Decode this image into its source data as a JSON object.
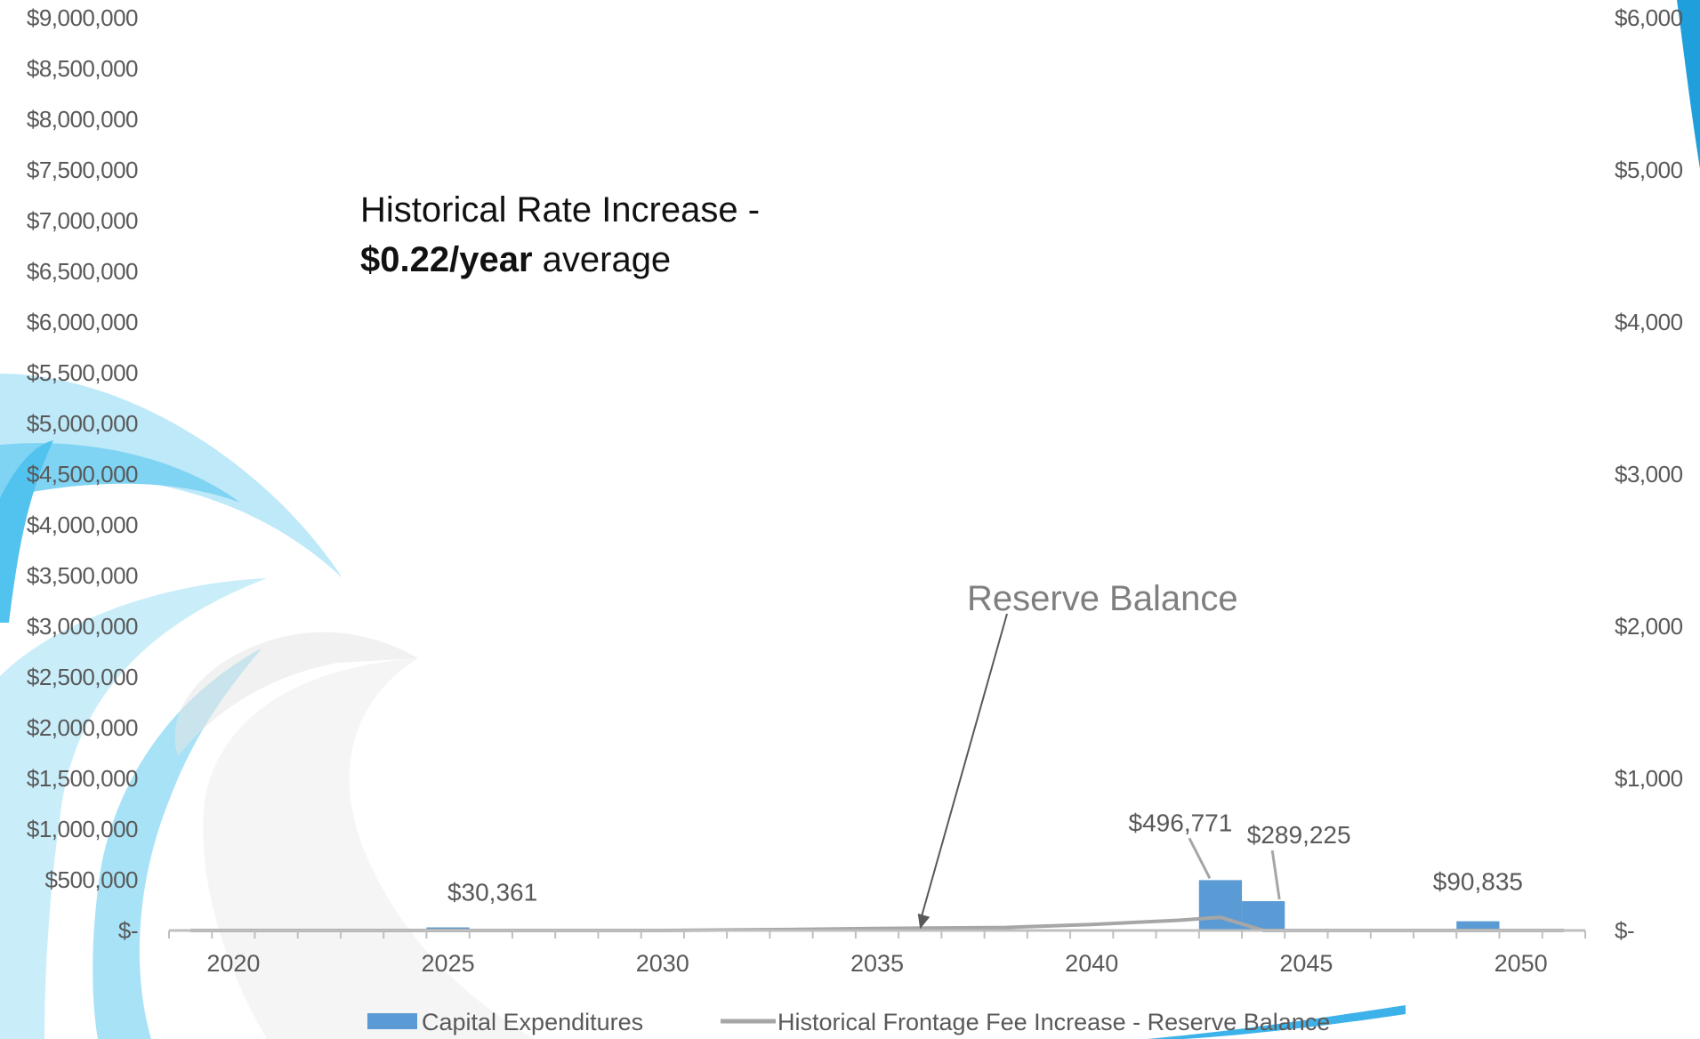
{
  "chart_data": {
    "type": "bar",
    "title": "",
    "xlabel": "",
    "ylabel": "",
    "x_ticks": [
      "2020",
      "2025",
      "2030",
      "2035",
      "2040",
      "2045",
      "2050"
    ],
    "xlim": [
      2018.5,
      2051.5
    ],
    "y_left": {
      "ylim": [
        0,
        9000000
      ],
      "ticks": [
        "$-",
        "$500,000",
        "$1,000,000",
        "$1,500,000",
        "$2,000,000",
        "$2,500,000",
        "$3,000,000",
        "$3,500,000",
        "$4,000,000",
        "$4,500,000",
        "$5,000,000",
        "$5,500,000",
        "$6,000,000",
        "$6,500,000",
        "$7,000,000",
        "$7,500,000",
        "$8,000,000",
        "$8,500,000",
        "$9,000,000"
      ]
    },
    "y_right": {
      "ylim": [
        0,
        6000
      ],
      "ticks": [
        "$-",
        "$1,000",
        "$2,000",
        "$3,000",
        "$4,000",
        "$5,000",
        "$6,000"
      ]
    },
    "series": [
      {
        "name": "Capital Expenditures",
        "type": "bar",
        "axis": "left",
        "color": "#5b9bd5",
        "points": [
          {
            "x": 2025,
            "y": 30361,
            "label": "$30,361"
          },
          {
            "x": 2043,
            "y": 496771,
            "label": "$496,771"
          },
          {
            "x": 2044,
            "y": 289225,
            "label": "$289,225"
          },
          {
            "x": 2049,
            "y": 90835,
            "label": "$90,835"
          }
        ]
      },
      {
        "name": "Historical Frontage Fee Increase - Reserve Balance",
        "type": "line",
        "axis": "left",
        "color": "#a6a6a6",
        "points": [
          {
            "x": 2019,
            "y": 0
          },
          {
            "x": 2020,
            "y": 0
          },
          {
            "x": 2025,
            "y": 0
          },
          {
            "x": 2030,
            "y": 0
          },
          {
            "x": 2033,
            "y": 10000
          },
          {
            "x": 2035,
            "y": 20000
          },
          {
            "x": 2038,
            "y": 30000
          },
          {
            "x": 2040,
            "y": 60000
          },
          {
            "x": 2042,
            "y": 100000
          },
          {
            "x": 2043,
            "y": 130000
          },
          {
            "x": 2044,
            "y": 0
          },
          {
            "x": 2045,
            "y": 0
          },
          {
            "x": 2050,
            "y": 0
          },
          {
            "x": 2051,
            "y": 0
          }
        ]
      }
    ],
    "callout": {
      "text": "Reserve Balance",
      "x": 2036,
      "y": 120000
    },
    "legend": {
      "position": "bottom"
    },
    "grid": false
  },
  "annotation": {
    "line1": "Historical Rate Increase -",
    "bold": "$0.22/year",
    "rest": " average"
  }
}
